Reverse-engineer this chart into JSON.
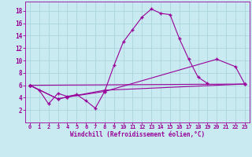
{
  "bg_color": "#c8eaf0",
  "grid_color": "#b0d8e0",
  "line_color": "#990099",
  "marker": "+",
  "xlabel": "Windchill (Refroidissement éolien,°C)",
  "xlabel_color": "#990099",
  "xlim": [
    -0.5,
    23.5
  ],
  "ylim": [
    0,
    19.5
  ],
  "yticks": [
    2,
    4,
    6,
    8,
    10,
    12,
    14,
    16,
    18
  ],
  "xticks": [
    0,
    1,
    2,
    3,
    4,
    5,
    6,
    7,
    8,
    9,
    10,
    11,
    12,
    13,
    14,
    15,
    16,
    17,
    18,
    19,
    20,
    21,
    22,
    23
  ],
  "line1_x": [
    0,
    1,
    2,
    3,
    4,
    5,
    6,
    7,
    8,
    9,
    10,
    11,
    12,
    13,
    14,
    15,
    16,
    17,
    18,
    19
  ],
  "line1_y": [
    6.0,
    5.2,
    3.0,
    4.7,
    4.2,
    4.5,
    3.5,
    2.3,
    5.0,
    9.2,
    13.0,
    15.0,
    17.0,
    18.3,
    17.6,
    17.4,
    13.5,
    10.2,
    7.3,
    6.3
  ],
  "line2_x": [
    0,
    3,
    4,
    8,
    23
  ],
  "line2_y": [
    6.0,
    3.8,
    4.1,
    5.2,
    6.2
  ],
  "line3_x": [
    0,
    3,
    4,
    8,
    20,
    22,
    23
  ],
  "line3_y": [
    6.0,
    3.8,
    4.1,
    5.0,
    10.2,
    9.0,
    6.2
  ],
  "line4_x": [
    0,
    23
  ],
  "line4_y": [
    6.0,
    6.2
  ]
}
